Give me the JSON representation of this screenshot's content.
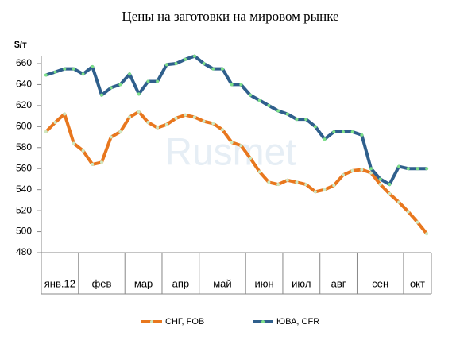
{
  "chart_data": {
    "type": "line",
    "title": "Цены на заготовки на мировом рынке",
    "y_label": "$/т",
    "watermark": "Rusmet",
    "categories": [
      "янв.12",
      null,
      null,
      null,
      "фев",
      null,
      null,
      null,
      null,
      "мар",
      null,
      null,
      null,
      "апр",
      null,
      null,
      null,
      "май",
      null,
      null,
      null,
      null,
      "июн",
      null,
      null,
      null,
      "июл",
      null,
      null,
      null,
      "авг",
      null,
      null,
      null,
      "сен",
      null,
      null,
      null,
      null,
      "окт",
      null,
      null
    ],
    "series": [
      {
        "name": "СНГ, FOB",
        "color": "#e8771e",
        "marker_color": "#cfe8c0",
        "values": [
          595,
          604,
          612,
          584,
          577,
          564,
          566,
          590,
          595,
          609,
          614,
          604,
          599,
          602,
          608,
          611,
          609,
          605,
          603,
          597,
          585,
          582,
          570,
          557,
          547,
          545,
          549,
          547,
          545,
          538,
          540,
          544,
          554,
          558,
          559,
          556,
          545,
          536,
          528,
          519,
          509,
          498
        ]
      },
      {
        "name": "ЮВА, CFR",
        "color": "#2f5f8c",
        "marker_color": "#7fe08a",
        "values": [
          649,
          652,
          655,
          655,
          650,
          657,
          630,
          637,
          640,
          650,
          631,
          643,
          643,
          659,
          660,
          664,
          667,
          660,
          655,
          655,
          640,
          640,
          630,
          625,
          620,
          615,
          612,
          607,
          607,
          600,
          588,
          595,
          595,
          595,
          592,
          560,
          550,
          545,
          562,
          560,
          560,
          560
        ]
      }
    ],
    "ylim": [
      480,
      660
    ],
    "yticks": [
      480,
      500,
      520,
      540,
      560,
      580,
      600,
      620,
      640,
      660
    ],
    "grid": false,
    "legend": "bottom"
  }
}
